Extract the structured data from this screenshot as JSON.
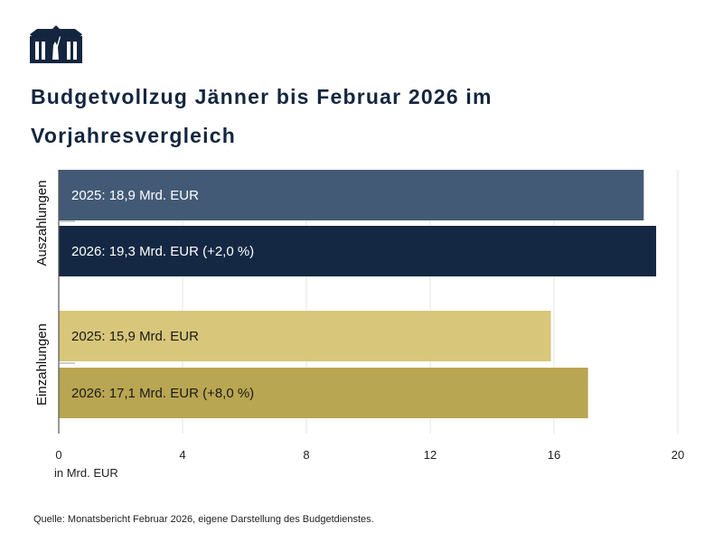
{
  "title": "Budgetvollzug Jänner bis Februar 2026 im Vorjahresvergleich",
  "source": "Quelle: Monatsbericht Februar 2026, eigene Darstellung des Budgetdienstes.",
  "logo_icon": "parliament-building-icon",
  "chart_data": {
    "type": "bar",
    "orientation": "horizontal",
    "title": "Budgetvollzug Jänner bis Februar 2026 im Vorjahresvergleich",
    "xlabel": "in Mrd. EUR",
    "xlim": [
      0,
      20
    ],
    "xticks": [
      "0",
      "4",
      "8",
      "12",
      "16",
      "20"
    ],
    "grid": "vertical",
    "groups": [
      {
        "name": "Auszahlungen",
        "bars": [
          {
            "label": "2025: 18,9 Mrd. EUR",
            "value": 18.9,
            "color": "#435a76",
            "text_color": "#ffffff"
          },
          {
            "label": "2026: 19,3 Mrd. EUR (+2,0 %)",
            "value": 19.3,
            "color": "#152843",
            "text_color": "#ffffff"
          }
        ]
      },
      {
        "name": "Einzahlungen",
        "bars": [
          {
            "label": "2025: 15,9 Mrd. EUR",
            "value": 15.9,
            "color": "#d8c67a",
            "text_color": "#1a1a1a"
          },
          {
            "label": "2026: 17,1 Mrd. EUR (+8,0 %)",
            "value": 17.1,
            "color": "#b9a652",
            "text_color": "#1a1a1a"
          }
        ]
      }
    ]
  }
}
